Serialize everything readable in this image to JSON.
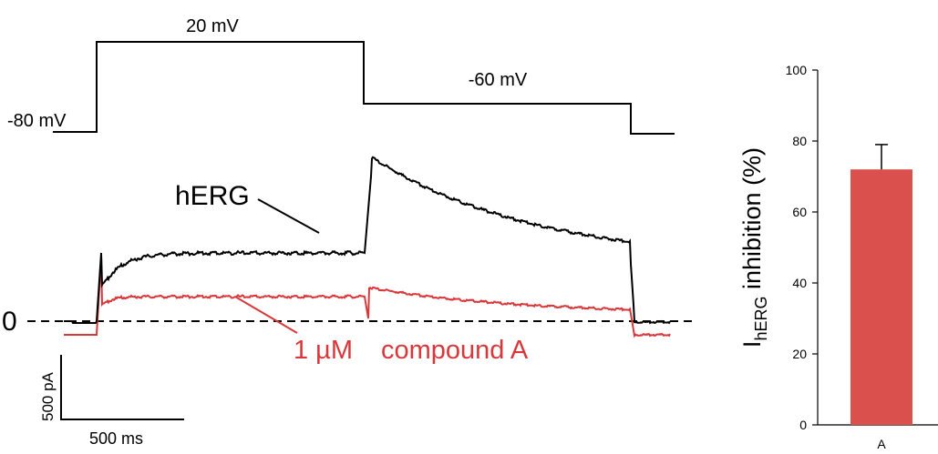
{
  "protocol": {
    "holding_label": "-80 mV",
    "step_label": "20 mV",
    "tail_label": "-60 mV"
  },
  "traces": {
    "control_label": "hERG",
    "drug_label_conc": "1 µM",
    "drug_label_name": "compound A",
    "zero_label": "0"
  },
  "scale_bar": {
    "current_label": "500 pA",
    "time_label": "500 ms"
  },
  "colors": {
    "control": "#000000",
    "drug": "#d9383a",
    "bar": "#d9504c"
  },
  "chart_data": {
    "type": "bar",
    "categories": [
      "A"
    ],
    "values": [
      72
    ],
    "error": [
      7
    ],
    "ylabel_main": "I",
    "ylabel_sub": "hERG",
    "ylabel_rest": " inhibition (%)",
    "ylim": [
      0,
      100
    ],
    "yticks": [
      0,
      20,
      40,
      60,
      80,
      100
    ],
    "grid": false
  }
}
